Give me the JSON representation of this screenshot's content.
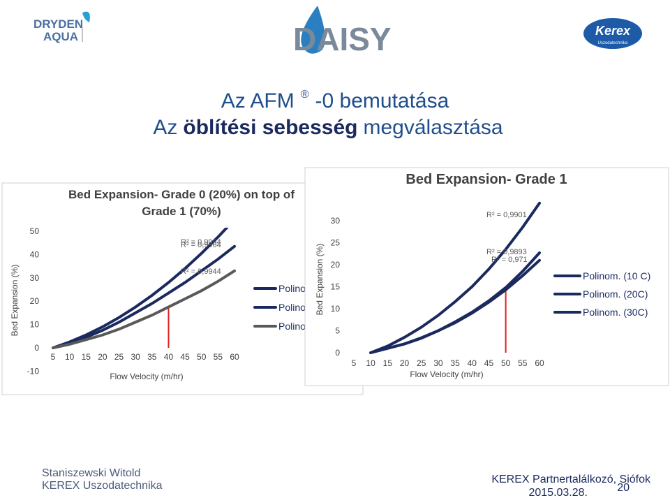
{
  "slide": {
    "logo_left": [
      "DRYDEN",
      "AQUA"
    ],
    "logo_center": "DAISY",
    "logo_right": [
      "Kerex",
      "Uszodatechnika"
    ],
    "heading_line1": [
      "Az AFM",
      "®",
      "-0 bemutatása"
    ],
    "heading_line2": [
      "Az",
      "öblítési sebesség",
      "megválasztása"
    ],
    "footer_left": [
      "Staniszewski Witold",
      "KEREX Uszodatechnika"
    ],
    "footer_right": [
      "KEREX Partnertalálkozó, Siófok",
      "2015.03.28."
    ],
    "page_number": "20"
  },
  "chart_data": [
    {
      "type": "line",
      "title": [
        "Bed Expansion- Grade 0 (20%) on top of",
        "Grade 1 (70%)"
      ],
      "y_label": "Bed Expansion (%)",
      "x_label": "Flow Velocity (m/hr)",
      "x": [
        5,
        10,
        15,
        20,
        25,
        30,
        35,
        40,
        45,
        50,
        55,
        60
      ],
      "xlim": [
        5,
        60
      ],
      "xticks": [
        5,
        10,
        15,
        20,
        25,
        30,
        35,
        40,
        45,
        50,
        55,
        60
      ],
      "ylim": [
        -10,
        50
      ],
      "yticks": [
        -10,
        0,
        10,
        20,
        30,
        40,
        50
      ],
      "series": [
        {
          "name": "Polinom",
          "color": "#1b2a5e",
          "values": [
            0,
            2.5,
            5.5,
            9,
            13,
            17.5,
            22.5,
            28,
            34,
            40.5,
            47.5,
            55
          ]
        },
        {
          "name": "Polinom",
          "color": "#1b2a5e",
          "values": [
            0,
            2,
            4.5,
            7.5,
            11,
            15,
            19,
            23.5,
            28,
            33,
            38,
            43.5
          ]
        },
        {
          "name": "Polinom",
          "color": "#595959",
          "values": [
            0,
            1.5,
            3.5,
            5.5,
            8,
            11,
            14,
            17.5,
            21,
            24.5,
            28.5,
            33
          ]
        }
      ],
      "annotations": [
        "R² = 0,9954",
        "R² = 0,9964",
        "R² = 0,9944"
      ],
      "vline_x": 40
    },
    {
      "type": "line",
      "title": "Bed Expansion- Grade 1",
      "y_label": "Bed Expansion (%)",
      "x_label": "Flow Velocity (m/hr)",
      "x": [
        10,
        15,
        20,
        25,
        30,
        35,
        40,
        45,
        50,
        55,
        60
      ],
      "xlim": [
        5,
        60
      ],
      "xticks": [
        5,
        10,
        15,
        20,
        25,
        30,
        35,
        40,
        45,
        50,
        55,
        60
      ],
      "ylim": [
        0,
        30
      ],
      "yticks": [
        0,
        5,
        10,
        15,
        20,
        25,
        30
      ],
      "series": [
        {
          "name": "Polinom. (10 C)",
          "color": "#1b2a5e",
          "values": [
            0,
            1.5,
            3.5,
            5.8,
            8.5,
            11.6,
            15,
            19,
            23.5,
            28.5,
            34
          ]
        },
        {
          "name": "Polinom. (20C)",
          "color": "#1b2a5e",
          "values": [
            0,
            1,
            2,
            3.4,
            5,
            7,
            9.2,
            11.8,
            14.8,
            18.5,
            22.7
          ]
        },
        {
          "name": "Polinom. (30C)",
          "color": "#1b2a5e",
          "values": [
            0,
            1,
            2,
            3.3,
            5,
            6.8,
            9,
            11.5,
            14.3,
            17.5,
            21
          ]
        }
      ],
      "annotations": [
        "R² = 0,9901",
        "R² = 0,9893",
        "R² = 0,971"
      ],
      "vline_x": 50
    }
  ]
}
